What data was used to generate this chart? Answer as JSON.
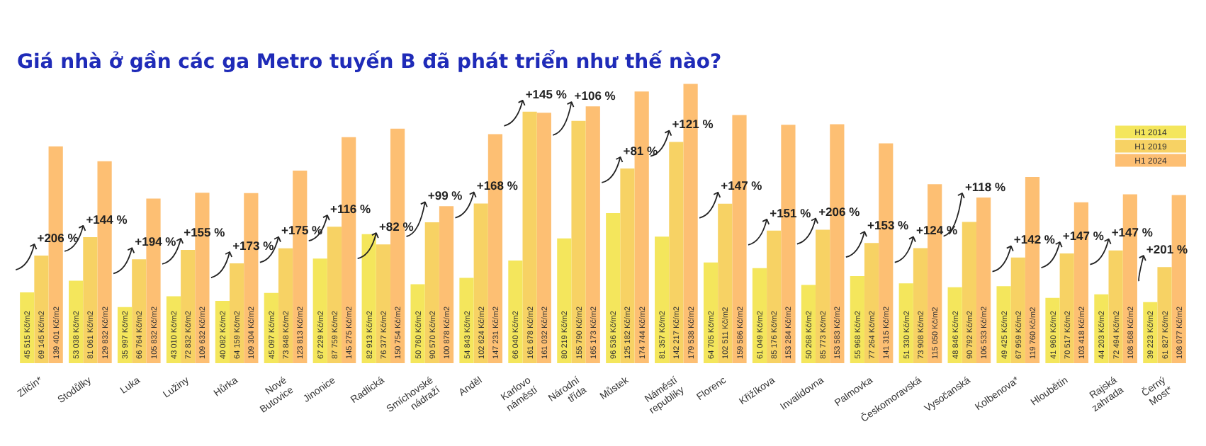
{
  "chart_data": {
    "type": "bar",
    "title": "Giá nhà ở gần các ga Metro tuyến B đã phát triển như thế nào?",
    "categories": [
      "Zličín*",
      "Stodůlky",
      "Luka",
      "Lužiny",
      "Hůrka",
      "Nové Butovice",
      "Jinonice",
      "Radlická",
      "Smíchovské nádraží",
      "Anděl",
      "Karlovo náměstí",
      "Národní třída",
      "Můstek",
      "Náměstí republiky",
      "Florenc",
      "Křižíkova",
      "Invalidovna",
      "Palmovka",
      "Českomoravská",
      "Vysočanská",
      "Kolbenova*",
      "Hloubětín",
      "Rajská zahrada",
      "Černý Most*"
    ],
    "series": [
      {
        "name": "H1 2014",
        "color": "#f4e65c",
        "values": [
          45515,
          53038,
          35997,
          43010,
          40082,
          45097,
          67229,
          82913,
          50760,
          54843,
          66040,
          80219,
          96536,
          81357,
          64705,
          61049,
          50268,
          55968,
          51330,
          48846,
          49425,
          41960,
          44203,
          39223
        ],
        "value_labels": [
          "45 515 Kč/m2",
          "53 038 Kč/m2",
          "35 997 Kč/m2",
          "43 010 Kč/m2",
          "40 082 Kč/m2",
          "45 097 Kč/m2",
          "67 229 Kč/m2",
          "82 913 Kč/m2",
          "50 760 Kč/m2",
          "54 843 Kč/m2",
          "66 040 Kč/m2",
          "80 219 Kč/m2",
          "96 536 Kč/m2",
          "81 357 Kč/m2",
          "64 705 Kč/m2",
          "61 049 Kč/m2",
          "50 268 Kč/m2",
          "55 968 Kč/m2",
          "51 330 Kč/m2",
          "48 846 Kč/m2",
          "49 425 Kč/m2",
          "41 960 Kč/m2",
          "44 203 Kč/m2",
          "39 223 Kč/m2"
        ]
      },
      {
        "name": "H1 2019",
        "color": "#f7d264",
        "values": [
          69145,
          81061,
          66764,
          72832,
          64159,
          73848,
          87759,
          76377,
          90570,
          102624,
          161678,
          155790,
          125182,
          142217,
          102511,
          85176,
          85773,
          77264,
          73908,
          90792,
          67959,
          70517,
          72494,
          61827
        ],
        "value_labels": [
          "69 145 Kč/m2",
          "81 061 Kč/m2",
          "66 764 Kč/m2",
          "72 832 Kč/m2",
          "64 159 Kč/m2",
          "73 848 Kč/m2",
          "87 759 Kč/m2",
          "76 377 Kč/m2",
          "90 570 Kč/m2",
          "102 624 Kč/m2",
          "161 678 Kč/m2",
          "155 790 Kč/m2",
          "125 182 Kč/m2",
          "142 217 Kč/m2",
          "102 511 Kč/m2",
          "85 176 Kč/m2",
          "85 773 Kč/m2",
          "77 264 Kč/m2",
          "73 908 Kč/m2",
          "90 792 Kč/m2",
          "67 959 Kč/m2",
          "70 517 Kč/m2",
          "72 494 Kč/m2",
          "61 827 Kč/m2"
        ]
      },
      {
        "name": "H1 2024",
        "color": "#fdbf73",
        "values": [
          139401,
          129832,
          105832,
          109632,
          109304,
          123813,
          145275,
          150754,
          100878,
          147231,
          161032,
          165173,
          174744,
          179538,
          159586,
          153284,
          153583,
          141315,
          115050,
          106533,
          119760,
          103418,
          108568,
          108077
        ],
        "value_labels": [
          "139 401 Kč/m2",
          "129 832 Kč/m2",
          "105 832 Kč/m2",
          "109 632 Kč/m2",
          "109 304 Kč/m2",
          "123 813 Kč/m2",
          "145 275 Kč/m2",
          "150 754 Kč/m2",
          "100 878 Kč/m2",
          "147 231 Kč/m2",
          "161 032 Kč/m2",
          "165 173 Kč/m2",
          "174 744 Kč/m2",
          "179 538 Kč/m2",
          "159 586 Kč/m2",
          "153 284 Kč/m2",
          "153 583 Kč/m2",
          "141 315 Kč/m2",
          "115 050 Kč/m2",
          "106 533 Kč/m2",
          "119 760 Kč/m2",
          "103 418 Kč/m2",
          "108 568 Kč/m2",
          "108 077 Kč/m2"
        ]
      }
    ],
    "annotations": [
      "+206 %",
      "+144 %",
      "+194 %",
      "+155 %",
      "+173 %",
      "+175 %",
      "+116 %",
      "+82 %",
      "+99 %",
      "+168 %",
      "+145 %",
      "+106 %",
      "+81 %",
      "+121 %",
      "+147 %",
      "+151 %",
      "+206 %",
      "+153 %",
      "+124 %",
      "+118 %",
      "+142 %",
      "+147 %",
      "+147 %",
      "+201 %"
    ],
    "legend": "top right",
    "grid": false
  }
}
